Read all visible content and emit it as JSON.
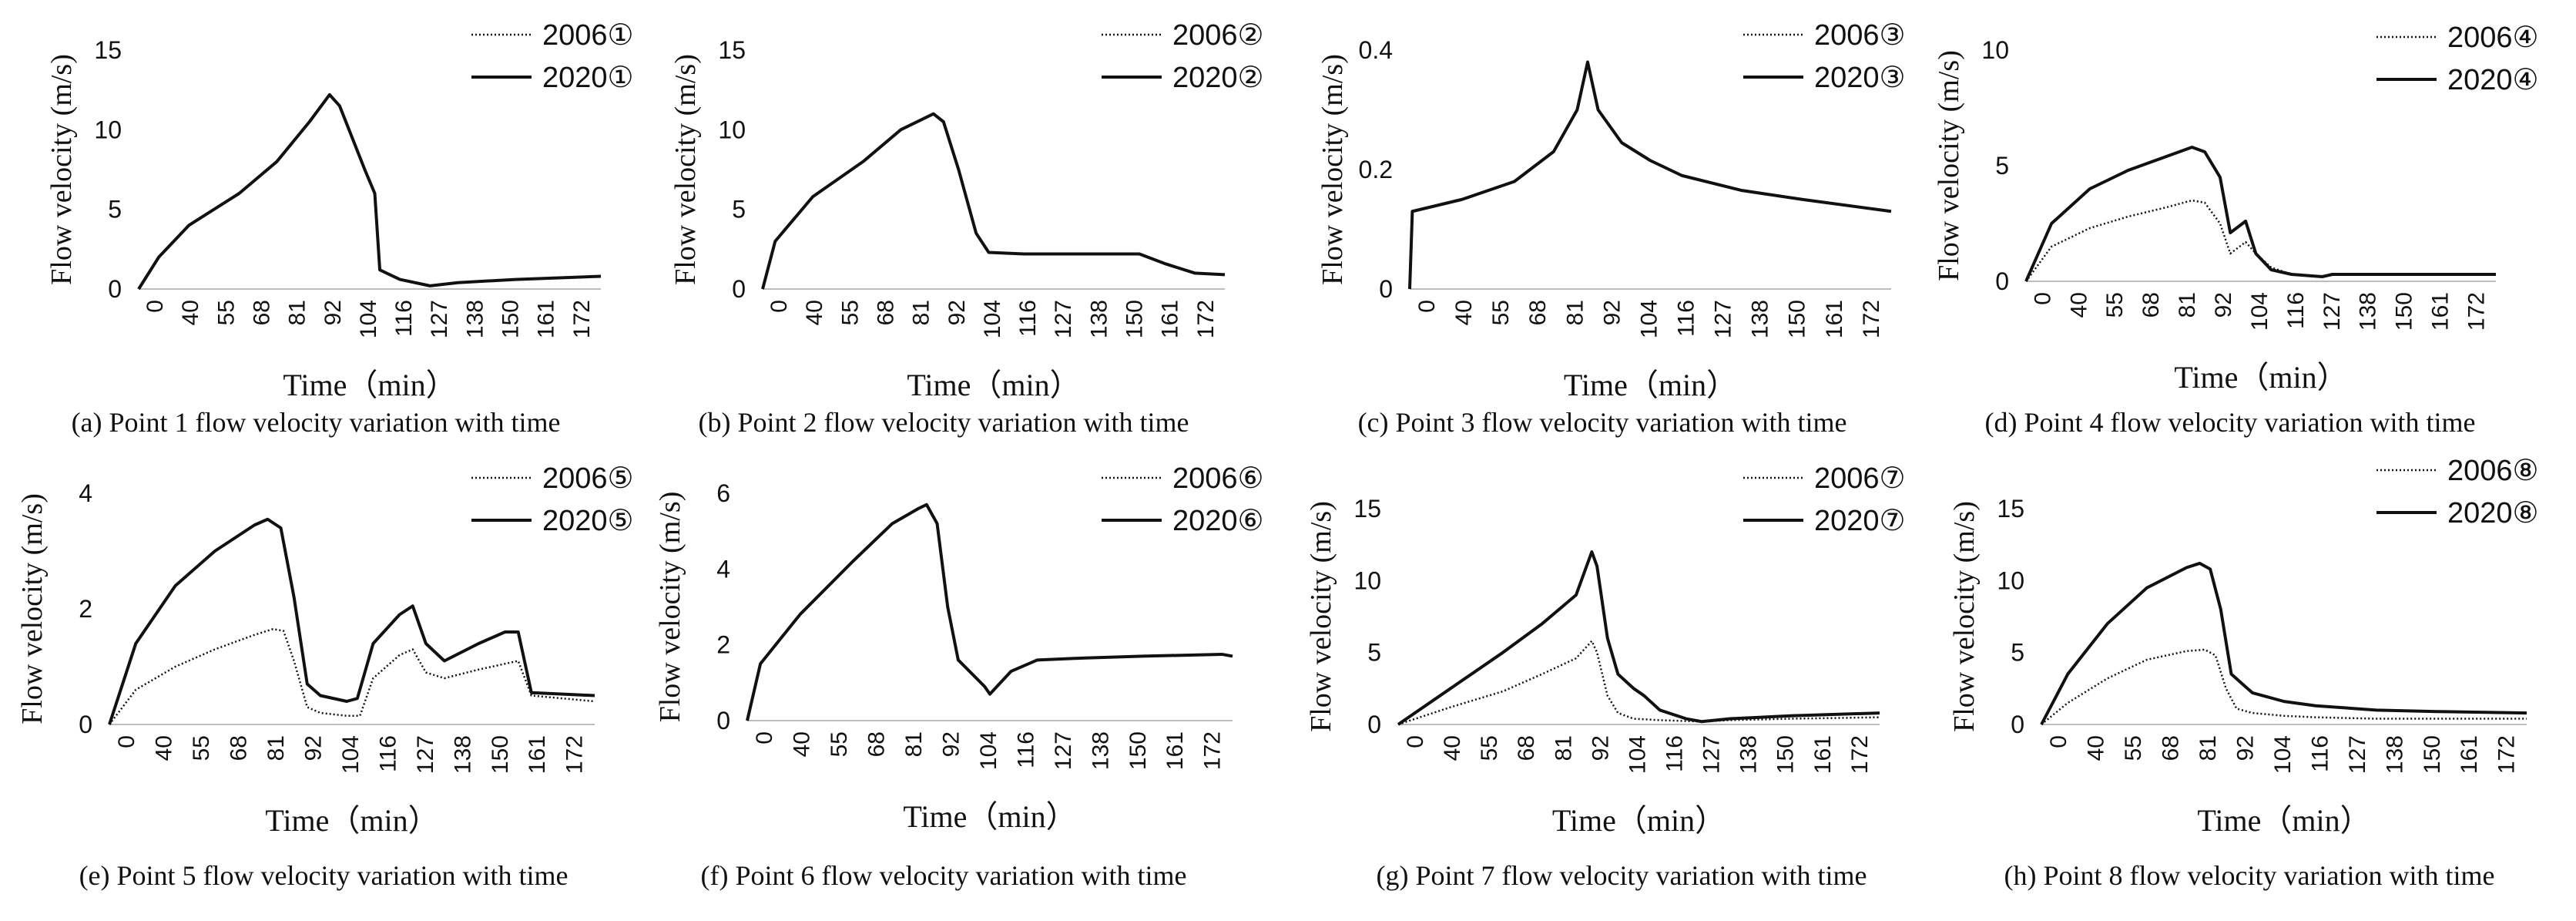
{
  "chart_data": [
    {
      "type": "line",
      "caption": "(a) Point 1 flow velocity variation with time",
      "xlabel": "Time（min）",
      "ylabel": "Flow velocity (m/s)",
      "xticks": [
        "0",
        "40",
        "55",
        "68",
        "81",
        "92",
        "104",
        "116",
        "127",
        "138",
        "150",
        "161",
        "172"
      ],
      "xlim": [
        0,
        184
      ],
      "ylim": [
        0,
        15
      ],
      "yticks": [
        0,
        5,
        10,
        15
      ],
      "legend": [
        "2006①",
        "2020①"
      ],
      "series": [
        {
          "name": "2006①",
          "style": "dotted",
          "x": [
            0,
            8,
            20,
            40,
            55,
            68,
            76,
            80,
            90,
            94,
            96,
            104,
            116,
            127,
            150,
            184
          ],
          "y": [
            0,
            2,
            4,
            6,
            8,
            10.5,
            12.2,
            11.5,
            7.5,
            6,
            1.2,
            0.6,
            0.2,
            0.4,
            0.6,
            0.8
          ]
        },
        {
          "name": "2020①",
          "style": "solid",
          "x": [
            0,
            8,
            20,
            40,
            55,
            68,
            76,
            80,
            90,
            94,
            96,
            104,
            116,
            127,
            150,
            184
          ],
          "y": [
            0,
            2,
            4,
            6,
            8,
            10.5,
            12.2,
            11.5,
            7.5,
            6,
            1.2,
            0.6,
            0.2,
            0.4,
            0.6,
            0.8
          ]
        }
      ]
    },
    {
      "type": "line",
      "caption": "(b) Point 2 flow velocity variation with time",
      "xlabel": "Time（min）",
      "ylabel": "Flow velocity (m/s)",
      "xticks": [
        "0",
        "40",
        "55",
        "68",
        "81",
        "92",
        "104",
        "116",
        "127",
        "138",
        "150",
        "161",
        "172"
      ],
      "xlim": [
        0,
        184
      ],
      "ylim": [
        0,
        15
      ],
      "yticks": [
        0,
        5,
        10,
        15
      ],
      "legend": [
        "2006②",
        "2020②"
      ],
      "series": [
        {
          "name": "2006②",
          "style": "dotted",
          "x": [
            0,
            5,
            20,
            40,
            55,
            68,
            72,
            78,
            85,
            90,
            104,
            150,
            160,
            172,
            184
          ],
          "y": [
            0,
            3,
            5.8,
            8,
            10,
            11,
            10.5,
            7.5,
            3.5,
            2.3,
            2.2,
            2.2,
            1.6,
            1.0,
            0.9
          ]
        },
        {
          "name": "2020②",
          "style": "solid",
          "x": [
            0,
            5,
            20,
            40,
            55,
            68,
            72,
            78,
            85,
            90,
            104,
            150,
            160,
            172,
            184
          ],
          "y": [
            0,
            3,
            5.8,
            8,
            10,
            11,
            10.5,
            7.5,
            3.5,
            2.3,
            2.2,
            2.2,
            1.6,
            1.0,
            0.9
          ]
        }
      ]
    },
    {
      "type": "line",
      "caption": "(c) Point 3 flow velocity variation with time",
      "xlabel": "Time（min）",
      "ylabel": "Flow velocity (m/s)",
      "xticks": [
        "0",
        "40",
        "55",
        "68",
        "81",
        "92",
        "104",
        "116",
        "127",
        "138",
        "150",
        "161",
        "172"
      ],
      "xlim": [
        0,
        184
      ],
      "ylim": [
        0,
        0.4
      ],
      "yticks": [
        0,
        0.2,
        0.4
      ],
      "legend": [
        "2006③",
        "2020③"
      ],
      "series": [
        {
          "name": "2006③",
          "style": "dotted",
          "x": [
            0,
            1,
            20,
            40,
            55,
            64,
            68,
            72,
            81,
            92,
            104,
            127,
            150,
            184
          ],
          "y": [
            0,
            0.13,
            0.15,
            0.18,
            0.23,
            0.3,
            0.38,
            0.3,
            0.245,
            0.215,
            0.19,
            0.165,
            0.15,
            0.13
          ]
        },
        {
          "name": "2020③",
          "style": "solid",
          "x": [
            0,
            1,
            20,
            40,
            55,
            64,
            68,
            72,
            81,
            92,
            104,
            127,
            150,
            184
          ],
          "y": [
            0,
            0.13,
            0.15,
            0.18,
            0.23,
            0.3,
            0.38,
            0.3,
            0.245,
            0.215,
            0.19,
            0.165,
            0.15,
            0.13
          ]
        }
      ]
    },
    {
      "type": "line",
      "caption": "(d) Point 4 flow velocity variation with time",
      "xlabel": "Time（min）",
      "ylabel": "Flow velocity (m/s)",
      "xticks": [
        "0",
        "40",
        "55",
        "68",
        "81",
        "92",
        "104",
        "116",
        "127",
        "138",
        "150",
        "161",
        "172"
      ],
      "xlim": [
        0,
        184
      ],
      "ylim": [
        0,
        10
      ],
      "yticks": [
        0,
        5,
        10
      ],
      "legend": [
        "2006④",
        "2020④"
      ],
      "series": [
        {
          "name": "2006④",
          "style": "dotted",
          "x": [
            0,
            10,
            25,
            40,
            55,
            65,
            70,
            76,
            80,
            86,
            90,
            96,
            104,
            116,
            120,
            184
          ],
          "y": [
            0,
            1.5,
            2.3,
            2.8,
            3.2,
            3.5,
            3.4,
            2.5,
            1.2,
            1.7,
            1.2,
            0.6,
            0.3,
            0.2,
            0.3,
            0.3
          ]
        },
        {
          "name": "2020④",
          "style": "solid",
          "x": [
            0,
            10,
            25,
            40,
            55,
            65,
            70,
            76,
            80,
            86,
            90,
            96,
            104,
            116,
            120,
            184
          ],
          "y": [
            0,
            2.5,
            4,
            4.8,
            5.4,
            5.8,
            5.6,
            4.5,
            2.1,
            2.6,
            1.2,
            0.5,
            0.3,
            0.2,
            0.3,
            0.3
          ]
        }
      ]
    },
    {
      "type": "line",
      "caption": "(e) Point 5 flow velocity variation with time",
      "xlabel": "Time（min）",
      "ylabel": "Flow velocity (m/s)",
      "xticks": [
        "0",
        "40",
        "55",
        "68",
        "81",
        "92",
        "104",
        "116",
        "127",
        "138",
        "150",
        "161",
        "172"
      ],
      "xlim": [
        0,
        184
      ],
      "ylim": [
        0,
        4
      ],
      "yticks": [
        0,
        2,
        4
      ],
      "legend": [
        "2006⑤",
        "2020⑤"
      ],
      "series": [
        {
          "name": "2006⑤",
          "style": "dotted",
          "x": [
            0,
            10,
            25,
            40,
            55,
            62,
            66,
            70,
            75,
            80,
            90,
            95,
            100,
            110,
            115,
            120,
            127,
            140,
            150,
            155,
            160,
            184
          ],
          "y": [
            0,
            0.6,
            1.0,
            1.3,
            1.55,
            1.65,
            1.62,
            1.1,
            0.3,
            0.2,
            0.15,
            0.15,
            0.8,
            1.2,
            1.3,
            0.9,
            0.8,
            0.95,
            1.05,
            1.1,
            0.5,
            0.4
          ]
        },
        {
          "name": "2020⑤",
          "style": "solid",
          "x": [
            0,
            10,
            25,
            40,
            55,
            60,
            65,
            70,
            75,
            80,
            90,
            94,
            100,
            110,
            115,
            120,
            127,
            140,
            150,
            155,
            160,
            184
          ],
          "y": [
            0,
            1.4,
            2.4,
            3.0,
            3.45,
            3.55,
            3.4,
            2.2,
            0.7,
            0.5,
            0.4,
            0.45,
            1.4,
            1.9,
            2.05,
            1.4,
            1.1,
            1.4,
            1.6,
            1.6,
            0.55,
            0.5
          ]
        }
      ]
    },
    {
      "type": "line",
      "caption": "(f) Point 6 flow velocity variation with time",
      "xlabel": "Time（min）",
      "ylabel": "Flow velocity (m/s)",
      "xticks": [
        "0",
        "40",
        "55",
        "68",
        "81",
        "92",
        "104",
        "116",
        "127",
        "138",
        "150",
        "161",
        "172"
      ],
      "xlim": [
        0,
        184
      ],
      "ylim": [
        0,
        6
      ],
      "yticks": [
        0,
        2,
        4,
        6
      ],
      "legend": [
        "2006⑥",
        "2020⑥"
      ],
      "series": [
        {
          "name": "2006⑥",
          "style": "dotted",
          "x": [
            0,
            5,
            20,
            40,
            55,
            65,
            68,
            72,
            76,
            80,
            90,
            92,
            100,
            110,
            127,
            150,
            180,
            184
          ],
          "y": [
            0,
            1.5,
            2.8,
            4.2,
            5.2,
            5.6,
            5.7,
            5.2,
            3,
            1.6,
            0.9,
            0.7,
            1.3,
            1.6,
            1.65,
            1.7,
            1.75,
            1.7
          ]
        },
        {
          "name": "2020⑥",
          "style": "solid",
          "x": [
            0,
            5,
            20,
            40,
            55,
            65,
            68,
            72,
            76,
            80,
            90,
            92,
            100,
            110,
            127,
            150,
            180,
            184
          ],
          "y": [
            0,
            1.5,
            2.8,
            4.2,
            5.2,
            5.6,
            5.7,
            5.2,
            3,
            1.6,
            0.9,
            0.7,
            1.3,
            1.6,
            1.65,
            1.7,
            1.75,
            1.7
          ]
        }
      ]
    },
    {
      "type": "line",
      "caption": "(g) Point 7 flow velocity variation with time",
      "xlabel": "Time（min）",
      "ylabel": "Flow velocity (m/s)",
      "xticks": [
        "0",
        "40",
        "55",
        "68",
        "81",
        "92",
        "104",
        "116",
        "127",
        "138",
        "150",
        "161",
        "172"
      ],
      "xlim": [
        0,
        184
      ],
      "ylim": [
        0,
        15
      ],
      "yticks": [
        0,
        5,
        10,
        15
      ],
      "legend": [
        "2006⑦",
        "2020⑦"
      ],
      "series": [
        {
          "name": "2006⑦",
          "style": "dotted",
          "x": [
            0,
            20,
            40,
            55,
            68,
            74,
            76,
            80,
            84,
            90,
            100,
            116,
            127,
            150,
            184
          ],
          "y": [
            0,
            1.2,
            2.3,
            3.5,
            4.6,
            5.8,
            5.0,
            2.0,
            0.8,
            0.4,
            0.3,
            0.2,
            0.3,
            0.4,
            0.5
          ]
        },
        {
          "name": "2020⑦",
          "style": "solid",
          "x": [
            0,
            20,
            40,
            55,
            68,
            74,
            76,
            80,
            84,
            90,
            94,
            100,
            110,
            116,
            127,
            150,
            184
          ],
          "y": [
            0,
            2.5,
            5,
            7,
            9,
            12,
            11,
            6,
            3.5,
            2.5,
            2,
            1,
            0.4,
            0.2,
            0.4,
            0.6,
            0.8
          ]
        }
      ]
    },
    {
      "type": "line",
      "caption": "(h) Point 8 flow velocity variation with time",
      "xlabel": "Time（min）",
      "ylabel": "Flow velocity (m/s)",
      "xticks": [
        "0",
        "40",
        "55",
        "68",
        "81",
        "92",
        "104",
        "116",
        "127",
        "138",
        "150",
        "161",
        "172"
      ],
      "xlim": [
        0,
        184
      ],
      "ylim": [
        0,
        15
      ],
      "yticks": [
        0,
        5,
        10,
        15
      ],
      "legend": [
        "2006⑧",
        "2020⑧"
      ],
      "series": [
        {
          "name": "2006⑧",
          "style": "dotted",
          "x": [
            0,
            10,
            25,
            40,
            55,
            62,
            66,
            70,
            74,
            80,
            92,
            104,
            127,
            184
          ],
          "y": [
            0,
            1.5,
            3.2,
            4.5,
            5.1,
            5.2,
            4.8,
            2.5,
            1.1,
            0.8,
            0.6,
            0.5,
            0.4,
            0.4
          ]
        },
        {
          "name": "2020⑧",
          "style": "solid",
          "x": [
            0,
            10,
            25,
            40,
            55,
            60,
            64,
            68,
            72,
            80,
            92,
            104,
            127,
            150,
            184
          ],
          "y": [
            0,
            3.5,
            7,
            9.5,
            10.9,
            11.2,
            10.8,
            8,
            3.5,
            2.2,
            1.6,
            1.3,
            1.0,
            0.9,
            0.8
          ]
        }
      ]
    }
  ]
}
